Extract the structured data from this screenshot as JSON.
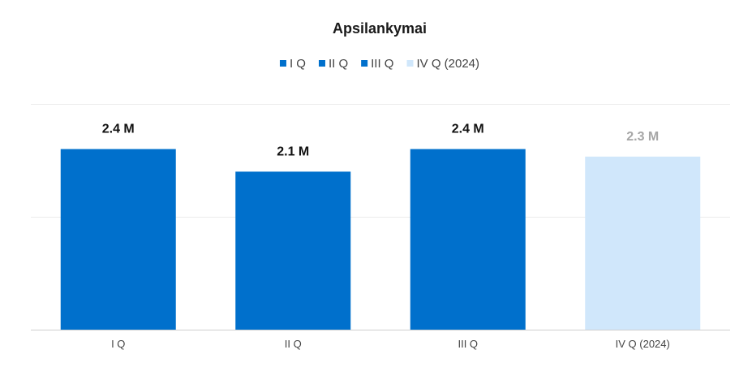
{
  "chart_data": {
    "type": "bar",
    "title": "Apsilankymai",
    "categories": [
      "I Q",
      "II Q",
      "III Q",
      "IV Q (2024)"
    ],
    "values": [
      2.4,
      2.1,
      2.4,
      2.3
    ],
    "value_labels": [
      "2.4 M",
      "2.1 M",
      "2.4 M",
      "2.3 M"
    ],
    "unit": "M",
    "ylim": [
      0,
      3
    ],
    "grid": true,
    "xlabel": "",
    "ylabel": "",
    "legend": {
      "placement": "top-center",
      "entries": [
        "I Q",
        "II Q",
        "III Q",
        "IV Q (2024)"
      ]
    },
    "colors": {
      "primary": "#0070CC",
      "forecast": "#D0E7FB",
      "label_primary": "#111111",
      "label_forecast": "#A6A6A6"
    },
    "bar_styles": [
      "primary",
      "primary",
      "primary",
      "forecast"
    ]
  }
}
